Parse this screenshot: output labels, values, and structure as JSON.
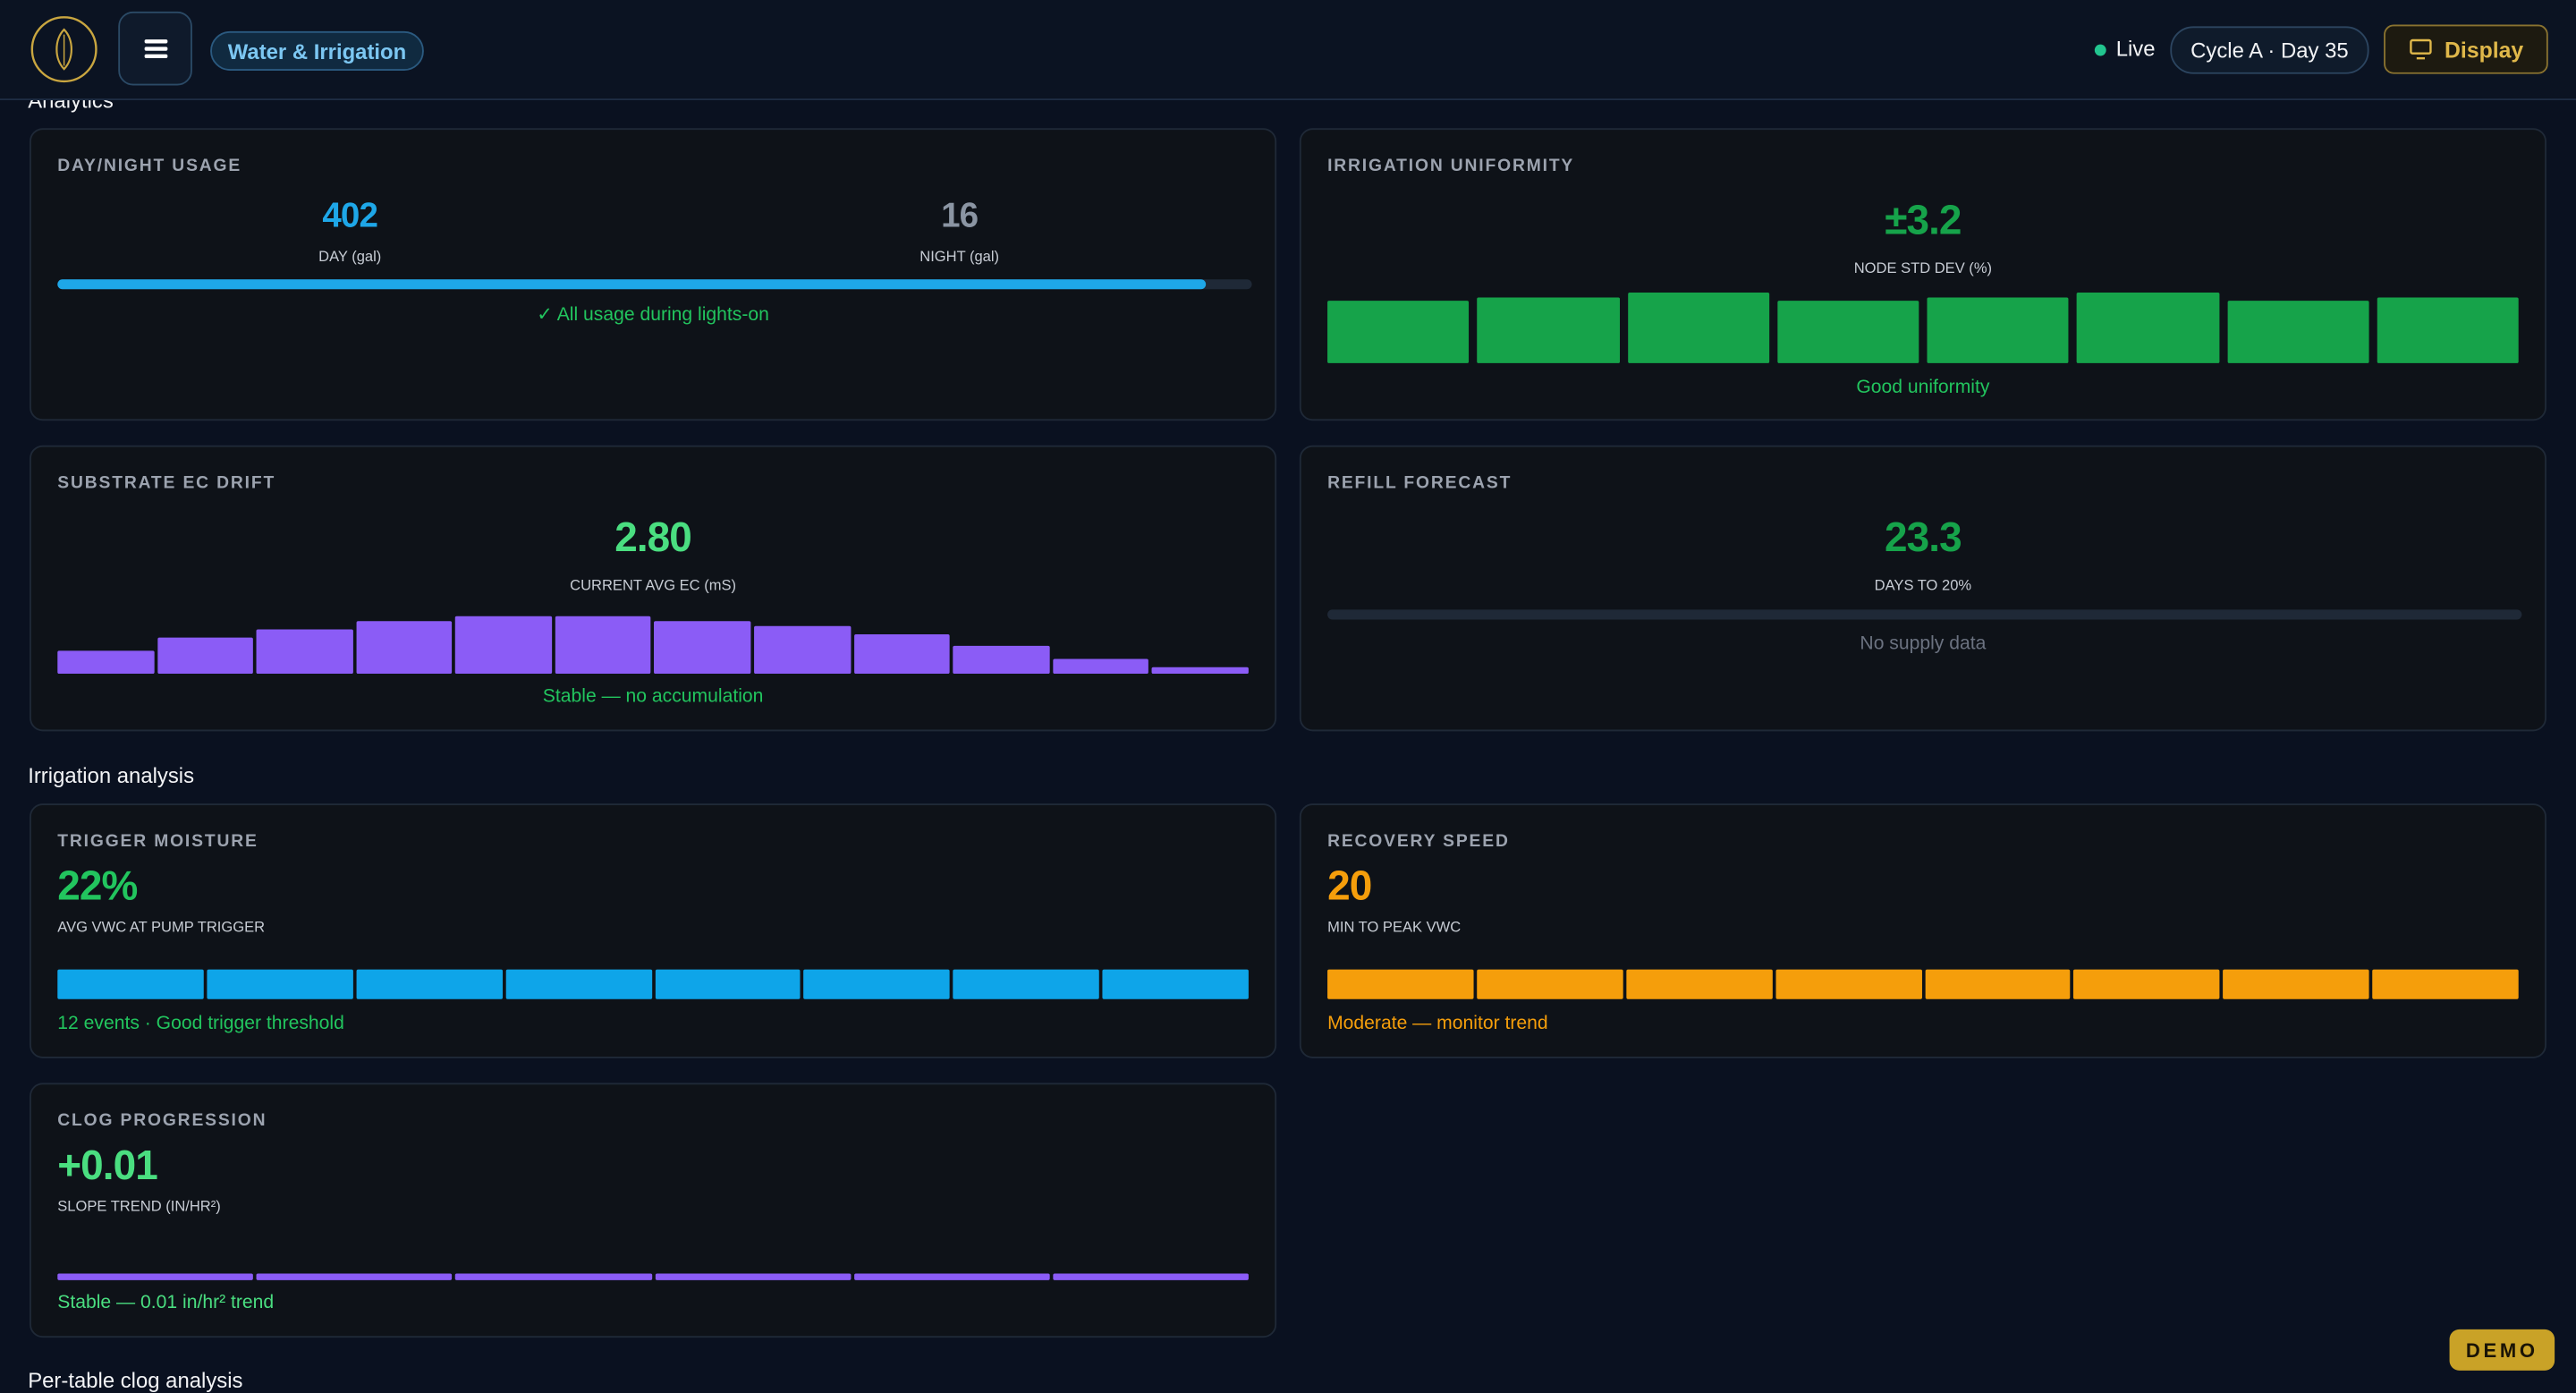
{
  "header": {
    "badge": "Water & Irrigation",
    "status": "Live",
    "cycle": "Cycle A · Day 35",
    "display_button": "Display"
  },
  "sections": [
    "Analytics",
    "Irrigation analysis",
    "Per-table clog analysis"
  ],
  "cards": [
    {
      "title": "DAY/NIGHT USAGE",
      "day_value": 402,
      "day_label": "DAY (gal)",
      "night_value": 16,
      "night_label": "NIGHT (gal)",
      "note": "✓ All usage during lights-on"
    },
    {
      "title": "IRRIGATION UNIFORMITY",
      "value": "±3.2",
      "label": "NODE STD DEV (%)",
      "bars": [
        38,
        40,
        43,
        38,
        40,
        43,
        38,
        40
      ],
      "note": "Good uniformity"
    },
    {
      "title": "SUBSTRATE EC DRIFT",
      "value": "2.80",
      "label": "CURRENT AVG EC (mS)",
      "bars": [
        14,
        22,
        27,
        32,
        35,
        35,
        32,
        29,
        24,
        17,
        9,
        4
      ],
      "note": "Stable — no accumulation"
    },
    {
      "title": "REFILL FORECAST",
      "value": "23.3",
      "label": "DAYS TO 20%",
      "note": "No supply data"
    },
    {
      "title": "TRIGGER MOISTURE",
      "value": "22%",
      "label": "AVG VWC AT PUMP TRIGGER",
      "bars": [
        18,
        18,
        18,
        18,
        18,
        18,
        18,
        18
      ],
      "note": "12 events · Good trigger threshold"
    },
    {
      "title": "RECOVERY SPEED",
      "value": "20",
      "label": "MIN TO PEAK VWC",
      "bars": [
        18,
        18,
        18,
        18,
        18,
        18,
        18,
        18
      ],
      "note": "Moderate — monitor trend"
    },
    {
      "title": "CLOG PROGRESSION",
      "value": "+0.01",
      "label": "SLOPE TREND (IN/HR²)",
      "bars": [
        4,
        4,
        4,
        4,
        4,
        4
      ],
      "note": "Stable — 0.01 in/hr² trend"
    }
  ],
  "demo_badge": "DEMO"
}
